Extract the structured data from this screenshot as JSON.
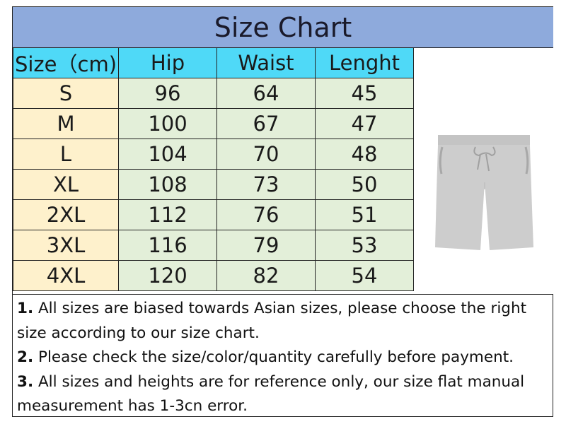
{
  "title": "Size Chart",
  "table": {
    "headers": [
      "Size（cm)",
      "Hip",
      "Waist",
      "Lenght"
    ],
    "rows": [
      [
        "S",
        "96",
        "64",
        "45"
      ],
      [
        "M",
        "100",
        "67",
        "47"
      ],
      [
        "L",
        "104",
        "70",
        "48"
      ],
      [
        "XL",
        "108",
        "73",
        "50"
      ],
      [
        "2XL",
        "112",
        "76",
        "51"
      ],
      [
        "3XL",
        "116",
        "79",
        "53"
      ],
      [
        "4XL",
        "120",
        "82",
        "54"
      ]
    ]
  },
  "image": {
    "icon": "grey-shorts-product-image"
  },
  "notes": [
    {
      "num": "1.",
      "text": " All sizes are biased towards Asian sizes, please choose the right size according to our size chart."
    },
    {
      "num": "2.",
      "text": " Please check the size/color/quantity carefully before payment."
    },
    {
      "num": "3.",
      "text": " All sizes and heights are for reference only, our size flat manual measurement has 1-3cn error."
    }
  ],
  "colors": {
    "title_bg": "#8eaadc",
    "header_bg": "#4fd9f7",
    "size_col_bg": "#fef1cc",
    "value_bg": "#e3efd9"
  }
}
